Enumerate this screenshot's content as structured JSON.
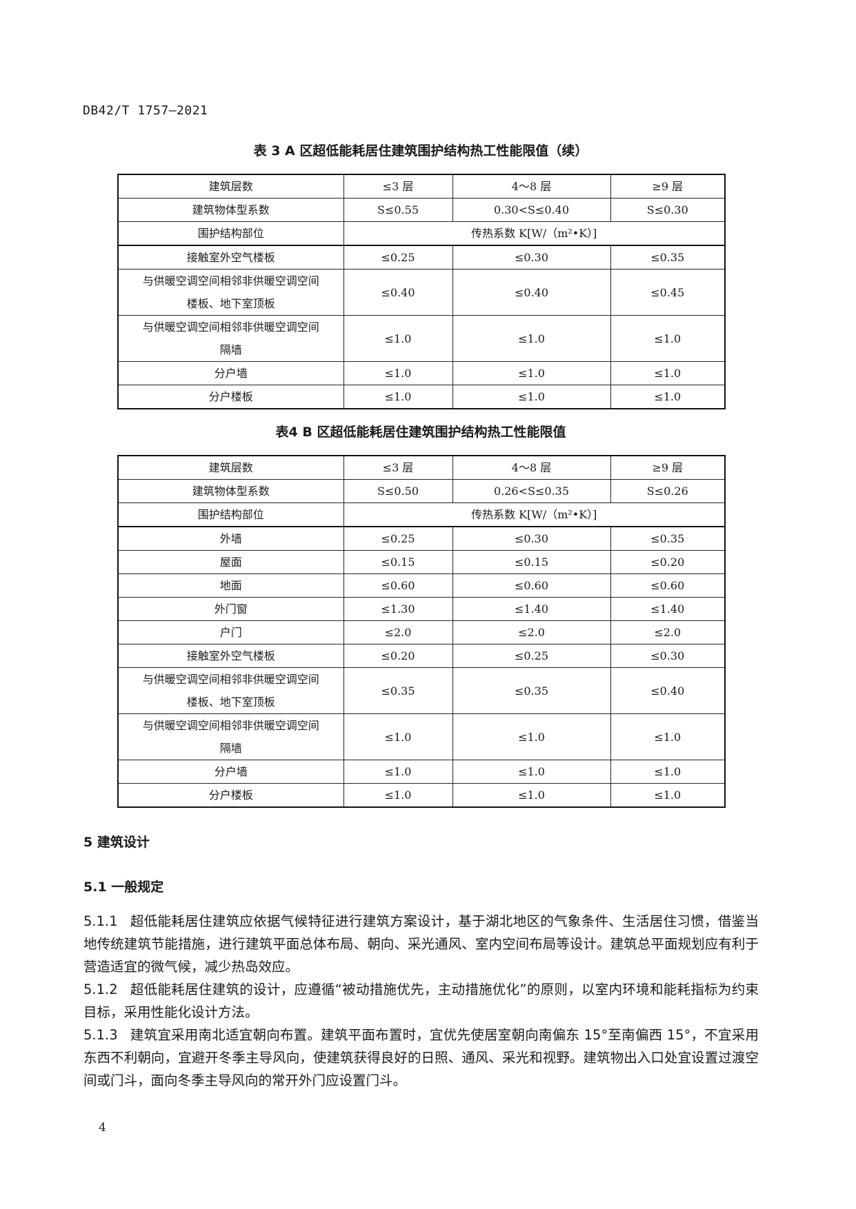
{
  "header": {
    "doc_code": "DB42/T 1757—2021"
  },
  "table3": {
    "caption": "表 3   A 区超低能耗居住建筑围护结构热工性能限值（续）",
    "header_rows": [
      [
        "建筑层数",
        "≤3 层",
        "4～8 层",
        "≥9 层"
      ],
      [
        "建筑物体型系数",
        "S≤0.55",
        "0.30<S≤0.40",
        "S≤0.30"
      ]
    ],
    "part_label": "围护结构部位",
    "k_label": "传热系数 K[W/（m²•K）]",
    "rows": [
      [
        "接触室外空气楼板",
        "≤0.25",
        "≤0.30",
        "≤0.35"
      ],
      [
        "与供暖空调空间相邻非供暖空调空间\n楼板、地下室顶板",
        "≤0.40",
        "≤0.40",
        "≤0.45"
      ],
      [
        "与供暖空调空间相邻非供暖空调空间\n隔墙",
        "≤1.0",
        "≤1.0",
        "≤1.0"
      ],
      [
        "分户墙",
        "≤1.0",
        "≤1.0",
        "≤1.0"
      ],
      [
        "分户楼板",
        "≤1.0",
        "≤1.0",
        "≤1.0"
      ]
    ]
  },
  "table4": {
    "caption": "表4   B 区超低能耗居住建筑围护结构热工性能限值",
    "header_rows": [
      [
        "建筑层数",
        "≤3 层",
        "4～8 层",
        "≥9 层"
      ],
      [
        "建筑物体型系数",
        "S≤0.50",
        "0.26<S≤0.35",
        "S≤0.26"
      ]
    ],
    "part_label": "围护结构部位",
    "k_label": "传热系数 K[W/（m²•K）]",
    "rows": [
      [
        "外墙",
        "≤0.25",
        "≤0.30",
        "≤0.35"
      ],
      [
        "屋面",
        "≤0.15",
        "≤0.15",
        "≤0.20"
      ],
      [
        "地面",
        "≤0.60",
        "≤0.60",
        "≤0.60"
      ],
      [
        "外门窗",
        "≤1.30",
        "≤1.40",
        "≤1.40"
      ],
      [
        "户门",
        "≤2.0",
        "≤2.0",
        "≤2.0"
      ],
      [
        "接触室外空气楼板",
        "≤0.20",
        "≤0.25",
        "≤0.30"
      ],
      [
        "与供暖空调空间相邻非供暖空调空间\n楼板、地下室顶板",
        "≤0.35",
        "≤0.35",
        "≤0.40"
      ],
      [
        "与供暖空调空间相邻非供暖空调空间\n隔墙",
        "≤1.0",
        "≤1.0",
        "≤1.0"
      ],
      [
        "分户墙",
        "≤1.0",
        "≤1.0",
        "≤1.0"
      ],
      [
        "分户楼板",
        "≤1.0",
        "≤1.0",
        "≤1.0"
      ]
    ]
  },
  "section5": {
    "heading": "5   建筑设计",
    "sub_heading": "5.1   一般规定",
    "paragraphs": [
      {
        "num": "5.1.1",
        "text": "超低能耗居住建筑应依据气候特征进行建筑方案设计，基于湖北地区的气象条件、生活居住习惯，借鉴当地传统建筑节能措施，进行建筑平面总体布局、朝向、采光通风、室内空间布局等设计。建筑总平面规划应有利于营造适宜的微气候，减少热岛效应。"
      },
      {
        "num": "5.1.2",
        "text": "超低能耗居住建筑的设计，应遵循“被动措施优先，主动措施优化”的原则，以室内环境和能耗指标为约束目标，采用性能化设计方法。"
      },
      {
        "num": "5.1.3",
        "text": "建筑宜采用南北适宜朝向布置。建筑平面布置时，宜优先使居室朝向南偏东 15°至南偏西 15°，不宜采用东西不利朝向，宜避开冬季主导风向，使建筑获得良好的日照、通风、采光和视野。建筑物出入口处宜设置过渡空间或门斗，面向冬季主导风向的常开外门应设置门斗。"
      }
    ]
  },
  "footer": {
    "page_number": "4"
  }
}
